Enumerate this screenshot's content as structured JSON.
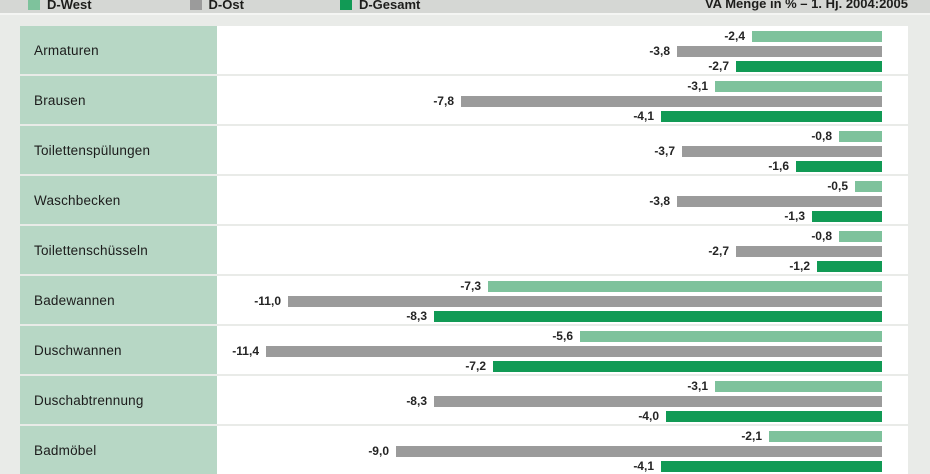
{
  "legend": {
    "items": [
      {
        "label": "D-West",
        "color": "#7ec29c"
      },
      {
        "label": "D-Ost",
        "color": "#9b9b9b"
      },
      {
        "label": "D-Gesamt",
        "color": "#119a55"
      }
    ],
    "right_label": "VA Menge in % – 1. Hj. 2004:2005"
  },
  "chart_data": {
    "type": "bar",
    "orientation": "horizontal",
    "title": "VA Menge in % – 1. Hj. 2004:2005",
    "xlim": [
      -12,
      0
    ],
    "zero_anchor": "right",
    "value_format": "german-decimal-comma",
    "categories": [
      "Armaturen",
      "Brausen",
      "Toilettenspülungen",
      "Waschbecken",
      "Toilettenschüsseln",
      "Badewannen",
      "Duschwannen",
      "Duschabtrennung",
      "Badmöbel"
    ],
    "series": [
      {
        "name": "D-West",
        "color": "#7ec29c",
        "values": [
          -2.4,
          -3.1,
          -0.8,
          -0.5,
          -0.8,
          -7.3,
          -5.6,
          -3.1,
          -2.1
        ]
      },
      {
        "name": "D-Ost",
        "color": "#9b9b9b",
        "values": [
          -3.8,
          -7.8,
          -3.7,
          -3.8,
          -2.7,
          -11.0,
          -11.4,
          -8.3,
          -9.0
        ]
      },
      {
        "name": "D-Gesamt",
        "color": "#119a55",
        "values": [
          -2.7,
          -4.1,
          -1.6,
          -1.3,
          -1.2,
          -8.3,
          -7.2,
          -4.0,
          -4.1
        ]
      }
    ]
  }
}
